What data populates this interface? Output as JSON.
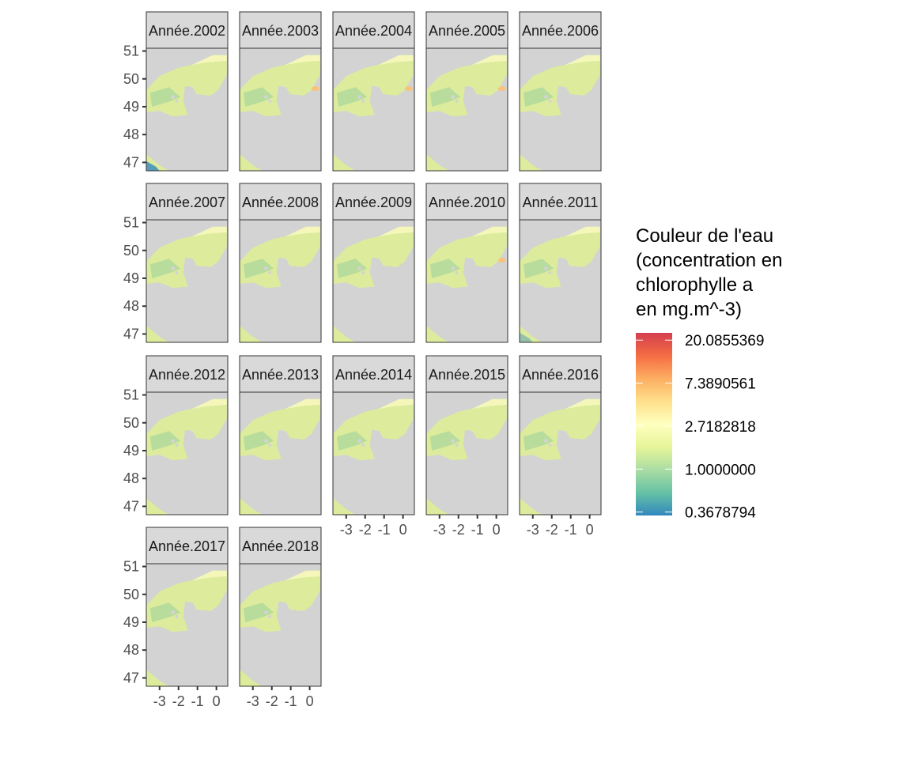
{
  "chart_data": {
    "type": "heatmap",
    "facet_labels": [
      "Année.2002",
      "Année.2003",
      "Année.2004",
      "Année.2005",
      "Année.2006",
      "Année.2007",
      "Année.2008",
      "Année.2009",
      "Année.2010",
      "Année.2011",
      "Année.2012",
      "Année.2013",
      "Année.2014",
      "Année.2015",
      "Année.2016",
      "Année.2017",
      "Année.2018"
    ],
    "x_ticks": [
      -3,
      -2,
      -1,
      0
    ],
    "x_tick_labels": [
      "-3",
      "-2",
      "-1",
      "0"
    ],
    "y_ticks": [
      47,
      48,
      49,
      50,
      51
    ],
    "y_tick_labels": [
      "47",
      "48",
      "49",
      "50",
      "51"
    ],
    "xlim": [
      -3.7,
      0.6
    ],
    "ylim": [
      46.7,
      51.1
    ],
    "legend": {
      "title_lines": [
        "Couleur de l'eau",
        "(concentration en",
        "chlorophylle a",
        "en mg.m^-3)"
      ],
      "labels": [
        "20.0855369",
        "7.3890561",
        "2.7182818",
        "1.0000000",
        "0.3678794"
      ],
      "values": [
        20.0855369,
        7.3890561,
        2.7182818,
        1.0,
        0.3678794
      ],
      "scale": "log",
      "colors": [
        "#d53e4f",
        "#f46d43",
        "#fdae61",
        "#fee08b",
        "#ffffbf",
        "#e6f598",
        "#abdda4",
        "#66c2a5",
        "#3288bd"
      ],
      "placement": "right"
    },
    "colors": {
      "land": "#d3d3d3",
      "panel_border": "#333333",
      "strip_fill": "#d9d9d9",
      "tick": "#333333",
      "water_main": "#dcec9c",
      "water_coast": "#f6f8bc",
      "water_offshore": "#a8d69c",
      "water_low": "#3d8ec0",
      "water_high": "#fdbf6f"
    }
  }
}
